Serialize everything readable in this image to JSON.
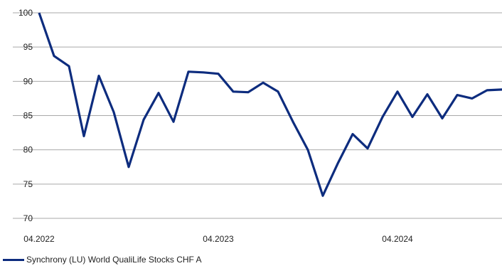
{
  "chart_data": {
    "type": "line",
    "x": [
      "04.2022",
      "05.2022",
      "06.2022",
      "07.2022",
      "08.2022",
      "09.2022",
      "10.2022",
      "11.2022",
      "12.2022",
      "01.2023",
      "02.2023",
      "03.2023",
      "04.2023",
      "05.2023",
      "06.2023",
      "07.2023",
      "08.2023",
      "09.2023",
      "10.2023",
      "11.2023",
      "12.2023",
      "01.2024",
      "02.2024",
      "03.2024",
      "04.2024",
      "05.2024",
      "06.2024",
      "07.2024",
      "08.2024",
      "09.2024",
      "10.2024",
      "11.2024"
    ],
    "series": [
      {
        "name": "Synchrony (LU) World QualiLife Stocks CHF A",
        "color": "#0d2c7e",
        "values": [
          100,
          93.7,
          92.2,
          82.0,
          90.8,
          85.5,
          77.5,
          84.4,
          88.3,
          84.1,
          91.4,
          91.3,
          91.1,
          88.5,
          88.4,
          89.8,
          88.5,
          84.1,
          80.0,
          73.3,
          78.0,
          82.3,
          80.2,
          84.8,
          88.5,
          84.8,
          88.1,
          84.6,
          88.0,
          87.5,
          88.7,
          88.8
        ]
      }
    ],
    "x_tick_labels": [
      "04.2022",
      "04.2023",
      "04.2024"
    ],
    "y_ticks": [
      70,
      75,
      80,
      85,
      90,
      95,
      100
    ],
    "ylim": [
      70,
      100
    ],
    "grid": "horizontal",
    "legend_position": "bottom-left",
    "title": "",
    "xlabel": "",
    "ylabel": ""
  }
}
